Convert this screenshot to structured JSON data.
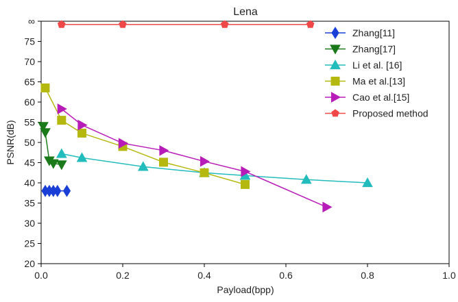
{
  "chart_data": {
    "type": "line",
    "title": "Lena",
    "xlabel": "Payload(bpp)",
    "ylabel": "PSNR(dB)",
    "xlim": [
      0.0,
      1.0
    ],
    "ylim": [
      20,
      80
    ],
    "x_ticks": [
      0.0,
      0.2,
      0.4,
      0.6,
      0.8,
      1.0
    ],
    "x_tick_labels": [
      "0.0",
      "0.2",
      "0.4",
      "0.6",
      "0.8",
      "1.0"
    ],
    "y_ticks": [
      20,
      25,
      30,
      35,
      40,
      45,
      50,
      55,
      60,
      65,
      70,
      75,
      80
    ],
    "y_tick_labels": [
      "20",
      "25",
      "30",
      "35",
      "40",
      "45",
      "50",
      "55",
      "60",
      "65",
      "70",
      "75",
      "∞"
    ],
    "grid": false,
    "legend_position": "top-right",
    "series": [
      {
        "name": "Zhang[11]",
        "color": "#1a3fd6",
        "marker": "diamond",
        "x": [
          0.01,
          0.02,
          0.03,
          0.04,
          0.063
        ],
        "y": [
          38.0,
          38.0,
          38.0,
          38.0,
          38.0
        ]
      },
      {
        "name": "Zhang[17]",
        "color": "#1a7a1a",
        "marker": "triangle-down",
        "x": [
          0.005,
          0.01,
          0.02,
          0.03,
          0.05
        ],
        "y": [
          54.0,
          52.5,
          45.5,
          44.8,
          44.5
        ]
      },
      {
        "name": "Li et al. [16]",
        "color": "#22bcbc",
        "marker": "triangle-up",
        "x": [
          0.05,
          0.1,
          0.25,
          0.4,
          0.5,
          0.65,
          0.8
        ],
        "y": [
          47.2,
          46.2,
          44.0,
          42.5,
          41.8,
          40.8,
          40.0
        ]
      },
      {
        "name": "Ma et al.[13]",
        "color": "#b5b80f",
        "marker": "square",
        "x": [
          0.01,
          0.05,
          0.1,
          0.2,
          0.3,
          0.4,
          0.5
        ],
        "y": [
          63.5,
          55.5,
          52.3,
          49.0,
          45.1,
          42.5,
          39.6
        ]
      },
      {
        "name": "Cao et al.[15]",
        "color": "#b81cb8",
        "marker": "triangle-right",
        "x": [
          0.05,
          0.1,
          0.2,
          0.3,
          0.4,
          0.5,
          0.7
        ],
        "y": [
          58.3,
          54.3,
          49.8,
          48.0,
          45.3,
          42.8,
          34.0
        ]
      },
      {
        "name": "Proposed method",
        "color": "#f04848",
        "marker": "pentagon",
        "x": [
          0.05,
          0.2,
          0.45,
          0.66
        ],
        "y": [
          79.2,
          79.2,
          79.2,
          79.2
        ]
      }
    ]
  }
}
